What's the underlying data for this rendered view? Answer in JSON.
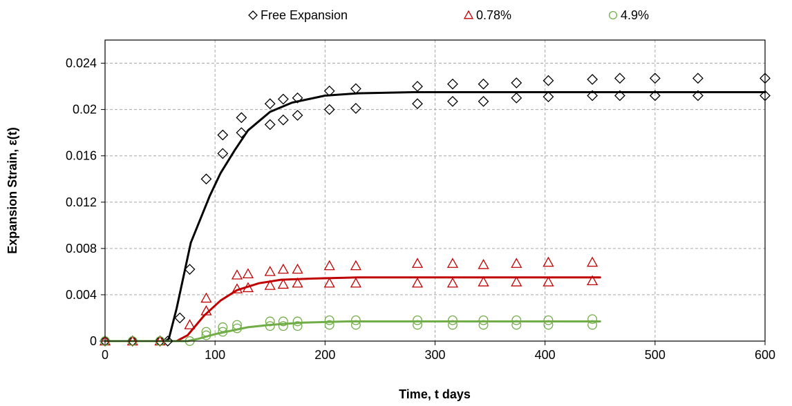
{
  "chart_data": {
    "type": "scatter",
    "xlabel": "Time, t days",
    "ylabel": "Expansion Strain, ε(t)",
    "xlim": [
      0,
      600
    ],
    "ylim": [
      0,
      0.026
    ],
    "xticks": [
      0,
      100,
      200,
      300,
      400,
      500,
      600
    ],
    "yticks": [
      0,
      0.004,
      0.008,
      0.012,
      0.016,
      0.02,
      0.024
    ],
    "xtick_labels": [
      "0",
      "100",
      "200",
      "300",
      "400",
      "500",
      "600"
    ],
    "ytick_labels": [
      "0",
      "0.004",
      "0.008",
      "0.012",
      "0.016",
      "0.02",
      "0.024"
    ],
    "grid": "dashed",
    "legend_position": "top",
    "series": [
      {
        "name": "Free Expansion",
        "marker": "diamond",
        "color": "#000000",
        "points": [
          [
            0,
            0
          ],
          [
            25,
            0
          ],
          [
            50,
            0
          ],
          [
            57,
            0
          ],
          [
            68,
            0.002
          ],
          [
            77,
            0.0062
          ],
          [
            92,
            0.014
          ],
          [
            107,
            0.0162
          ],
          [
            107,
            0.0178
          ],
          [
            124,
            0.018
          ],
          [
            124,
            0.0193
          ],
          [
            150,
            0.0187
          ],
          [
            150,
            0.0205
          ],
          [
            162,
            0.0191
          ],
          [
            162,
            0.0209
          ],
          [
            175,
            0.0195
          ],
          [
            175,
            0.021
          ],
          [
            204,
            0.02
          ],
          [
            204,
            0.0216
          ],
          [
            228,
            0.0201
          ],
          [
            228,
            0.0218
          ],
          [
            284,
            0.0205
          ],
          [
            284,
            0.022
          ],
          [
            316,
            0.0207
          ],
          [
            316,
            0.0222
          ],
          [
            344,
            0.0207
          ],
          [
            344,
            0.0222
          ],
          [
            374,
            0.021
          ],
          [
            374,
            0.0223
          ],
          [
            403,
            0.0211
          ],
          [
            403,
            0.0225
          ],
          [
            443,
            0.0212
          ],
          [
            443,
            0.0226
          ],
          [
            468,
            0.0212
          ],
          [
            468,
            0.0227
          ],
          [
            500,
            0.0212
          ],
          [
            500,
            0.0227
          ],
          [
            539,
            0.0212
          ],
          [
            539,
            0.0227
          ],
          [
            600,
            0.0212
          ],
          [
            600,
            0.0227
          ]
        ],
        "fit": [
          [
            0,
            0
          ],
          [
            55,
            0
          ],
          [
            58,
            0.0002
          ],
          [
            65,
            0.0028
          ],
          [
            78,
            0.0085
          ],
          [
            95,
            0.0125
          ],
          [
            105,
            0.0145
          ],
          [
            118,
            0.0165
          ],
          [
            130,
            0.0182
          ],
          [
            150,
            0.0198
          ],
          [
            170,
            0.0206
          ],
          [
            200,
            0.0212
          ],
          [
            230,
            0.0214
          ],
          [
            280,
            0.0215
          ],
          [
            400,
            0.0215
          ],
          [
            600,
            0.0215
          ]
        ]
      },
      {
        "name": "0.78%",
        "marker": "triangle",
        "color": "#c00000",
        "points": [
          [
            0,
            0
          ],
          [
            25,
            0
          ],
          [
            50,
            0
          ],
          [
            77,
            0.0014
          ],
          [
            92,
            0.0026
          ],
          [
            92,
            0.0037
          ],
          [
            120,
            0.0045
          ],
          [
            120,
            0.0057
          ],
          [
            130,
            0.0046
          ],
          [
            130,
            0.0058
          ],
          [
            150,
            0.0048
          ],
          [
            150,
            0.006
          ],
          [
            162,
            0.0049
          ],
          [
            162,
            0.0062
          ],
          [
            175,
            0.005
          ],
          [
            175,
            0.0062
          ],
          [
            204,
            0.005
          ],
          [
            204,
            0.0065
          ],
          [
            228,
            0.005
          ],
          [
            228,
            0.0065
          ],
          [
            284,
            0.005
          ],
          [
            284,
            0.0067
          ],
          [
            316,
            0.005
          ],
          [
            316,
            0.0067
          ],
          [
            344,
            0.0051
          ],
          [
            344,
            0.0066
          ],
          [
            374,
            0.0051
          ],
          [
            374,
            0.0067
          ],
          [
            403,
            0.0051
          ],
          [
            403,
            0.0068
          ],
          [
            443,
            0.0052
          ],
          [
            443,
            0.0068
          ]
        ],
        "fit": [
          [
            0,
            0
          ],
          [
            65,
            0
          ],
          [
            75,
            0.0005
          ],
          [
            90,
            0.0022
          ],
          [
            105,
            0.0035
          ],
          [
            120,
            0.0044
          ],
          [
            140,
            0.005
          ],
          [
            160,
            0.0053
          ],
          [
            190,
            0.0054
          ],
          [
            230,
            0.0055
          ],
          [
            300,
            0.0055
          ],
          [
            450,
            0.0055
          ]
        ]
      },
      {
        "name": "4.9%",
        "marker": "circle",
        "color": "#70ad47",
        "points": [
          [
            0,
            0
          ],
          [
            25,
            0
          ],
          [
            50,
            0
          ],
          [
            77,
            0
          ],
          [
            92,
            0.0005
          ],
          [
            92,
            0.0008
          ],
          [
            107,
            0.0008
          ],
          [
            107,
            0.0012
          ],
          [
            120,
            0.0011
          ],
          [
            120,
            0.0014
          ],
          [
            150,
            0.0013
          ],
          [
            150,
            0.0017
          ],
          [
            162,
            0.0013
          ],
          [
            162,
            0.0017
          ],
          [
            175,
            0.0013
          ],
          [
            175,
            0.0017
          ],
          [
            204,
            0.0014
          ],
          [
            204,
            0.0018
          ],
          [
            228,
            0.0014
          ],
          [
            228,
            0.0018
          ],
          [
            284,
            0.0014
          ],
          [
            284,
            0.0018
          ],
          [
            316,
            0.0014
          ],
          [
            316,
            0.0018
          ],
          [
            344,
            0.0014
          ],
          [
            344,
            0.0018
          ],
          [
            374,
            0.0014
          ],
          [
            374,
            0.0018
          ],
          [
            403,
            0.0014
          ],
          [
            403,
            0.0018
          ],
          [
            443,
            0.0014
          ],
          [
            443,
            0.0019
          ]
        ],
        "fit": [
          [
            0,
            0
          ],
          [
            75,
            0
          ],
          [
            85,
            0.0002
          ],
          [
            100,
            0.0006
          ],
          [
            115,
            0.0009
          ],
          [
            130,
            0.0012
          ],
          [
            150,
            0.0014
          ],
          [
            180,
            0.0016
          ],
          [
            220,
            0.0017
          ],
          [
            300,
            0.0017
          ],
          [
            450,
            0.0017
          ]
        ]
      }
    ]
  }
}
